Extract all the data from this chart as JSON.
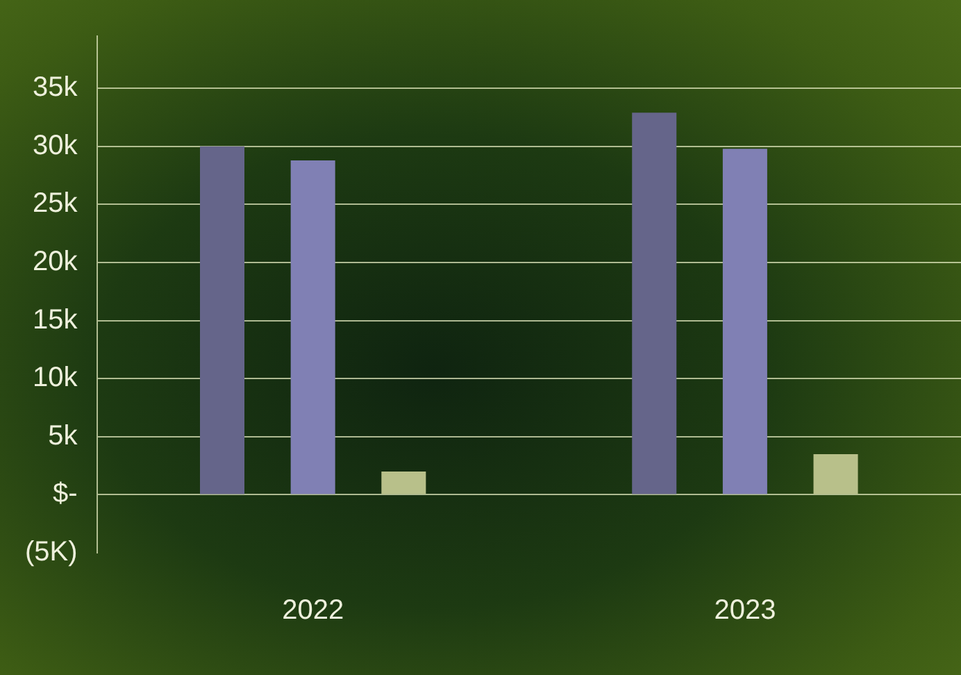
{
  "chart_data": {
    "type": "bar",
    "categories": [
      "2022",
      "2023"
    ],
    "series": [
      {
        "color": "#65658a",
        "values": [
          30000,
          32900
        ]
      },
      {
        "color": "#8080b4",
        "values": [
          28800,
          29800
        ]
      },
      {
        "color": "#b8c08a",
        "values": [
          2000,
          3500
        ]
      }
    ],
    "ylim": [
      -5000,
      39500
    ],
    "yticks": [
      {
        "value": -5000,
        "label": "(5K)"
      },
      {
        "value": 0,
        "label": "$-"
      },
      {
        "value": 5000,
        "label": "5k"
      },
      {
        "value": 10000,
        "label": "10k"
      },
      {
        "value": 15000,
        "label": "15k"
      },
      {
        "value": 20000,
        "label": "20k"
      },
      {
        "value": 25000,
        "label": "25k"
      },
      {
        "value": 30000,
        "label": "30k"
      },
      {
        "value": 35000,
        "label": "35k"
      }
    ],
    "grid": "y",
    "legend": false
  }
}
